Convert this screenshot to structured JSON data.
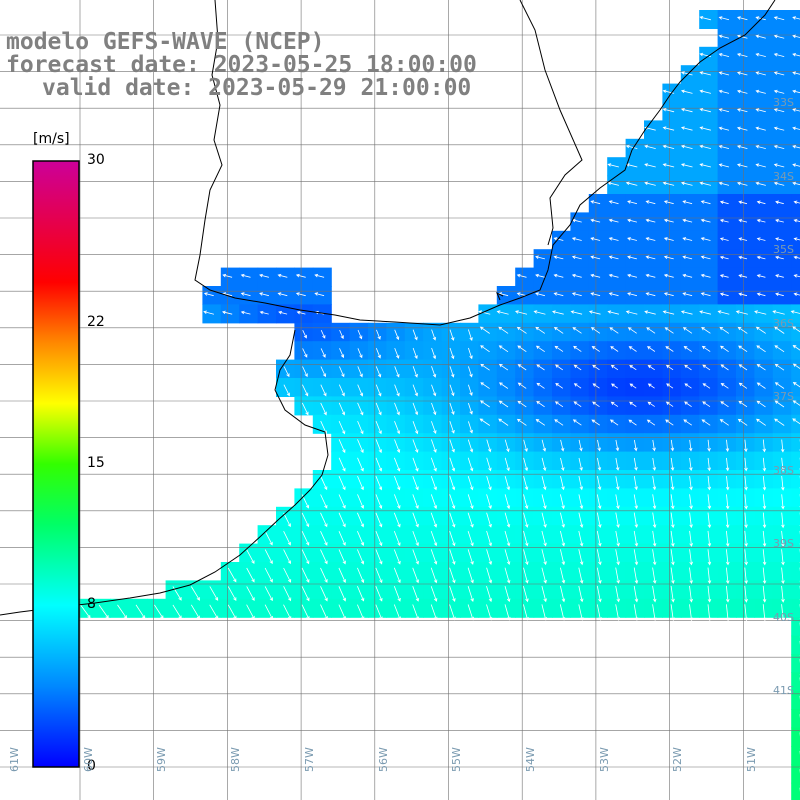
{
  "header": {
    "line1": "modelo GEFS-WAVE (NCEP)",
    "line2": "forecast date: 2023-05-25 18:00:00",
    "line3": "valid date: 2023-05-29 21:00:00"
  },
  "colorbar": {
    "unit": "[m/s]",
    "min": 0,
    "max": 30,
    "ticks": [
      "30",
      "22",
      "15",
      "8",
      "0"
    ],
    "tick_values": [
      30,
      22,
      15,
      8,
      0
    ],
    "stops": [
      {
        "v": 0,
        "color": "#0000ff"
      },
      {
        "v": 4,
        "color": "#0088ff"
      },
      {
        "v": 8,
        "color": "#00ffff"
      },
      {
        "v": 12,
        "color": "#00ff66"
      },
      {
        "v": 15,
        "color": "#33ff00"
      },
      {
        "v": 18,
        "color": "#ffff00"
      },
      {
        "v": 21,
        "color": "#ff8800"
      },
      {
        "v": 24,
        "color": "#ff0000"
      },
      {
        "v": 30,
        "color": "#cc0099"
      }
    ]
  },
  "map": {
    "lat_labels": [
      "33S",
      "34S",
      "35S",
      "36S",
      "37S",
      "38S",
      "39S",
      "40S",
      "41S"
    ],
    "lon_labels": [
      "61W",
      "60W",
      "59W",
      "58W",
      "57W",
      "56W",
      "55W",
      "54W",
      "53W",
      "52W",
      "51W"
    ],
    "land_color": "#ffffff",
    "arrow_color": "#ffffff",
    "grid_color": "#707070"
  }
}
